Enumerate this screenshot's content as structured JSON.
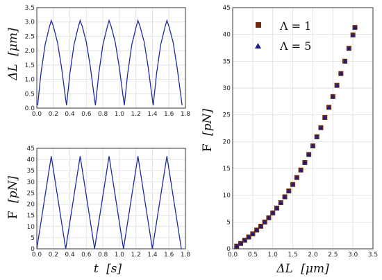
{
  "chart_data": [
    {
      "type": "line",
      "xlim": [
        0,
        1.8
      ],
      "ylim": [
        0,
        3.5
      ],
      "x_ticks": [
        "0.0",
        "0.2",
        "0.4",
        "0.6",
        "0.8",
        "1.0",
        "1.2",
        "1.4",
        "1.6",
        "1.8"
      ],
      "y_ticks": [
        "0.0",
        "0.5",
        "1.0",
        "1.5",
        "2.0",
        "2.5",
        "3.0",
        "3.5"
      ],
      "ylabel_main": "ΔL",
      "ylabel_unit": "[μm]",
      "xlabel_main": "",
      "xlabel_unit": "",
      "grid": true,
      "series": [
        {
          "color": "#1f2a9e",
          "x": [
            0.01,
            0.05,
            0.1,
            0.15,
            0.175,
            0.2,
            0.25,
            0.3,
            0.35,
            0.36,
            0.4,
            0.45,
            0.5,
            0.525,
            0.55,
            0.6,
            0.65,
            0.7,
            0.71,
            0.75,
            0.8,
            0.85,
            0.875,
            0.9,
            0.95,
            1.0,
            1.05,
            1.06,
            1.1,
            1.15,
            1.2,
            1.225,
            1.25,
            1.3,
            1.35,
            1.4,
            1.41,
            1.45,
            1.5,
            1.55,
            1.575,
            1.6,
            1.65,
            1.7,
            1.75,
            1.76
          ],
          "y": [
            0.1,
            1.2,
            2.2,
            2.8,
            3.05,
            2.85,
            2.3,
            1.4,
            0.3,
            0.1,
            1.2,
            2.2,
            2.8,
            3.05,
            2.85,
            2.3,
            1.4,
            0.3,
            0.1,
            1.2,
            2.2,
            2.8,
            3.05,
            2.85,
            2.3,
            1.4,
            0.3,
            0.1,
            1.2,
            2.2,
            2.8,
            3.05,
            2.85,
            2.3,
            1.4,
            0.3,
            0.1,
            1.2,
            2.2,
            2.8,
            3.05,
            2.85,
            2.3,
            1.4,
            0.3,
            0.1
          ]
        }
      ]
    },
    {
      "type": "line",
      "xlim": [
        0,
        1.8
      ],
      "ylim": [
        0,
        45
      ],
      "x_ticks": [
        "0.0",
        "0.2",
        "0.4",
        "0.6",
        "0.8",
        "1.0",
        "1.2",
        "1.4",
        "1.6",
        "1.8"
      ],
      "y_ticks": [
        "0",
        "5",
        "10",
        "15",
        "20",
        "25",
        "30",
        "35",
        "40",
        "45"
      ],
      "ylabel_main": "F",
      "ylabel_unit": "[pN]",
      "xlabel_main": "t",
      "xlabel_unit": "[s]",
      "grid": true,
      "series": [
        {
          "color": "#1f2a9e",
          "x": [
            0.0,
            0.175,
            0.35,
            0.525,
            0.7,
            0.875,
            1.05,
            1.225,
            1.4,
            1.575,
            1.75
          ],
          "y": [
            0,
            41.5,
            0,
            41.5,
            0,
            41.5,
            0,
            41.5,
            0,
            41.5,
            0
          ]
        }
      ]
    },
    {
      "type": "scatter",
      "xlim": [
        0,
        3.5
      ],
      "ylim": [
        0,
        45
      ],
      "x_ticks": [
        "0.0",
        "0.5",
        "1.0",
        "1.5",
        "2.0",
        "2.5",
        "3.0",
        "3.5"
      ],
      "y_ticks": [
        "0",
        "5",
        "10",
        "15",
        "20",
        "25",
        "30",
        "35",
        "40",
        "45"
      ],
      "ylabel_main": "F",
      "ylabel_unit": "[pN]",
      "xlabel_main": "ΔL",
      "xlabel_unit": "[μm]",
      "grid": true,
      "legend_position": "top-left",
      "series": [
        {
          "name": "Λ = 1",
          "marker": "square",
          "color": "#6b2a10",
          "x": [
            0.1,
            0.2,
            0.3,
            0.4,
            0.5,
            0.6,
            0.7,
            0.8,
            0.9,
            1.0,
            1.1,
            1.2,
            1.3,
            1.4,
            1.5,
            1.6,
            1.7,
            1.8,
            1.9,
            2.0,
            2.1,
            2.2,
            2.3,
            2.4,
            2.5,
            2.6,
            2.7,
            2.8,
            2.9,
            3.0,
            3.05
          ],
          "y": [
            0.5,
            1.0,
            1.6,
            2.2,
            2.8,
            3.5,
            4.2,
            5.0,
            5.8,
            6.7,
            7.6,
            8.6,
            9.7,
            10.8,
            12.0,
            13.3,
            14.7,
            16.1,
            17.6,
            19.2,
            20.9,
            22.6,
            24.5,
            26.4,
            28.4,
            30.5,
            32.7,
            35.0,
            37.4,
            39.9,
            41.3
          ]
        },
        {
          "name": "Λ = 5",
          "marker": "triangle",
          "color": "#1a1a8c",
          "x": [
            0.1,
            0.2,
            0.3,
            0.4,
            0.5,
            0.6,
            0.7,
            0.8,
            0.9,
            1.0,
            1.1,
            1.2,
            1.3,
            1.4,
            1.5,
            1.6,
            1.7,
            1.8,
            1.9,
            2.0,
            2.1,
            2.2,
            2.3,
            2.4,
            2.5,
            2.6,
            2.7,
            2.8,
            2.9,
            3.0,
            3.05
          ],
          "y": [
            0.5,
            1.0,
            1.6,
            2.2,
            2.8,
            3.5,
            4.2,
            5.0,
            5.8,
            6.7,
            7.6,
            8.6,
            9.7,
            10.8,
            12.0,
            13.3,
            14.7,
            16.1,
            17.6,
            19.2,
            20.9,
            22.6,
            24.5,
            26.4,
            28.4,
            30.5,
            32.7,
            35.0,
            37.4,
            39.9,
            41.3
          ]
        }
      ],
      "legend": [
        {
          "label": "Λ = 1",
          "marker": "square",
          "color": "#6b2a10"
        },
        {
          "label": "Λ = 5",
          "marker": "triangle",
          "color": "#1a1a8c"
        }
      ]
    }
  ]
}
